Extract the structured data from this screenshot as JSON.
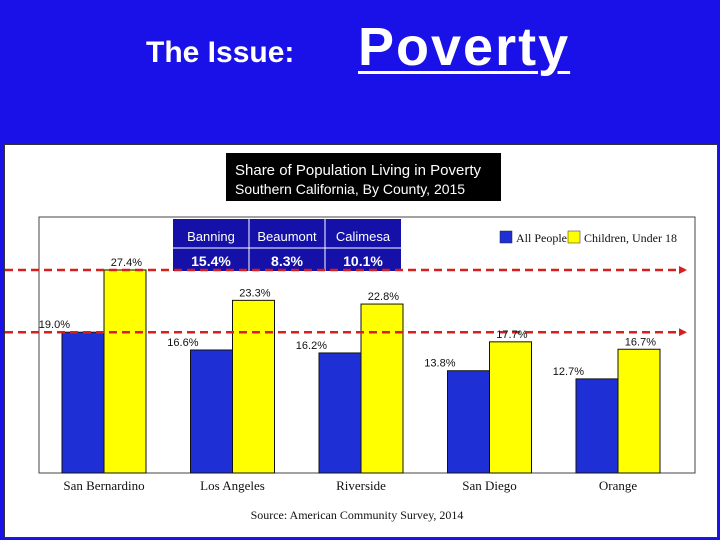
{
  "header": {
    "issue_label": "The Issue:",
    "topic": "Poverty"
  },
  "colors": {
    "background": "#1a10e8",
    "all_people": "#1f2fd6",
    "children": "#ffff00",
    "reference_line": "#d62020",
    "title_box": "#000000",
    "inset_table": "#1410a8"
  },
  "chart_data": {
    "type": "bar",
    "title": "Share of Population Living in Poverty",
    "subtitle": "Southern California, By County, 2015",
    "categories": [
      "San Bernardino",
      "Los Angeles",
      "Riverside",
      "San Diego",
      "Orange"
    ],
    "series": [
      {
        "name": "All People",
        "values": [
          19.0,
          16.6,
          16.2,
          13.8,
          12.7
        ],
        "labels": [
          "19.0%",
          "16.6%",
          "16.2%",
          "13.8%",
          "12.7%"
        ]
      },
      {
        "name": "Children, Under 18",
        "values": [
          27.4,
          23.3,
          22.8,
          17.7,
          16.7
        ],
        "labels": [
          "27.4%",
          "23.3%",
          "22.8%",
          "17.7%",
          "16.7%"
        ]
      }
    ],
    "ylim": [
      0,
      30
    ],
    "grid": false,
    "legend": "top-right",
    "reference_lines": [
      {
        "value": 27.4,
        "style": "dashed"
      },
      {
        "value": 19.0,
        "style": "dashed"
      }
    ],
    "source": "Source:  American Community Survey, 2014"
  },
  "inset_table": {
    "columns": [
      "Banning",
      "Beaumont",
      "Calimesa"
    ],
    "values": [
      "15.4%",
      "8.3%",
      "10.1%"
    ]
  }
}
